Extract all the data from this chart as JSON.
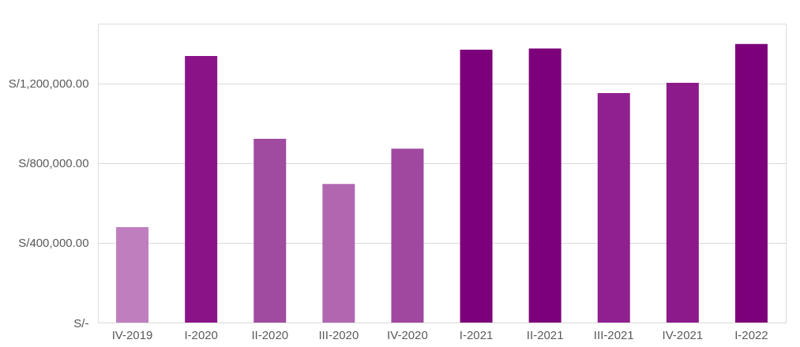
{
  "chart_data": {
    "type": "bar",
    "categories": [
      "IV-2019",
      "I-2020",
      "II-2020",
      "III-2020",
      "IV-2020",
      "I-2021",
      "II-2021",
      "III-2021",
      "IV-2021",
      "I-2022"
    ],
    "values": [
      479000,
      1338000,
      922000,
      696000,
      873000,
      1369000,
      1375000,
      1152000,
      1203000,
      1398000
    ],
    "colors": [
      "#bf7fbf",
      "#8a1487",
      "#a04aa0",
      "#b067b0",
      "#a048a0",
      "#7d007b",
      "#7d007b",
      "#902090",
      "#8c1a8a",
      "#7d007b"
    ],
    "ylim": [
      0,
      1500000
    ],
    "yticks": [
      {
        "value": 0,
        "label": "S/-"
      },
      {
        "value": 400000,
        "label": "S/400,000.00"
      },
      {
        "value": 800000,
        "label": "S/800,000.00"
      },
      {
        "value": 1200000,
        "label": "S/1,200,000.00"
      }
    ],
    "grid": "y"
  }
}
